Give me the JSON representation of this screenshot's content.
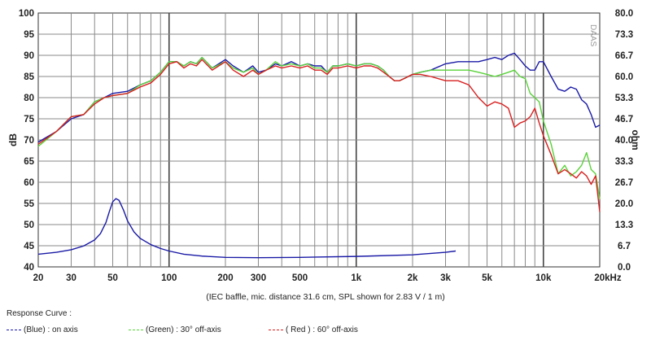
{
  "chart_data": {
    "type": "line",
    "note": "(IEC baffle, mic. distance 31.6 cm, SPL shown for 2.83 V / 1 m)",
    "watermark": "DAAS",
    "xlabel": "",
    "ylabel": "dB",
    "y2label": "ohm",
    "xscale": "log",
    "xlim": [
      20,
      20000
    ],
    "ylim": [
      40,
      100
    ],
    "y2lim": [
      0,
      80
    ],
    "grid": true,
    "x_ticks": [
      20,
      30,
      50,
      100,
      200,
      300,
      500,
      1000,
      2000,
      3000,
      5000,
      10000,
      20000
    ],
    "x_tick_labels": [
      "20",
      "30",
      "50",
      "100",
      "200",
      "300",
      "500",
      "1k",
      "2k",
      "3k",
      "5k",
      "10k",
      "20kHz"
    ],
    "y_ticks": [
      40,
      45,
      50,
      55,
      60,
      65,
      70,
      75,
      80,
      85,
      90,
      95,
      100
    ],
    "y_tick_labels": [
      "40",
      "45",
      "50",
      "55",
      "60",
      "65",
      "70",
      "75",
      "80",
      "85",
      "90",
      "95",
      "100"
    ],
    "y2_ticks": [
      0.0,
      6.7,
      13.3,
      20.0,
      26.7,
      33.3,
      40.0,
      46.7,
      53.3,
      60.0,
      66.7,
      73.3,
      80.0
    ],
    "y2_tick_labels": [
      "0.0",
      "6.7",
      "13.3",
      "20.0",
      "26.7",
      "33.3",
      "40.0",
      "46.7",
      "53.3",
      "60.0",
      "66.7",
      "73.3",
      "80.0"
    ],
    "series": [
      {
        "name": "(Blue)  : on axis",
        "color": "#1a1aa6",
        "points": [
          [
            20,
            69.5
          ],
          [
            25,
            72
          ],
          [
            30,
            75
          ],
          [
            35,
            76
          ],
          [
            40,
            79
          ],
          [
            45,
            80
          ],
          [
            50,
            81
          ],
          [
            60,
            81.5
          ],
          [
            70,
            83
          ],
          [
            80,
            84
          ],
          [
            90,
            86
          ],
          [
            100,
            88.5
          ],
          [
            110,
            88.5
          ],
          [
            120,
            87.5
          ],
          [
            130,
            88.5
          ],
          [
            140,
            88
          ],
          [
            150,
            89.5
          ],
          [
            170,
            87
          ],
          [
            200,
            89
          ],
          [
            220,
            87.5
          ],
          [
            250,
            86
          ],
          [
            280,
            87.5
          ],
          [
            300,
            86
          ],
          [
            330,
            86.5
          ],
          [
            370,
            88
          ],
          [
            400,
            87.5
          ],
          [
            450,
            88.5
          ],
          [
            500,
            87.5
          ],
          [
            550,
            88
          ],
          [
            600,
            87.5
          ],
          [
            650,
            87.5
          ],
          [
            700,
            86
          ],
          [
            750,
            87.5
          ],
          [
            800,
            87.5
          ],
          [
            900,
            88
          ],
          [
            1000,
            87.5
          ],
          [
            1100,
            88
          ],
          [
            1200,
            88
          ],
          [
            1300,
            87.5
          ],
          [
            1400,
            86.5
          ],
          [
            1500,
            85
          ],
          [
            1600,
            84
          ],
          [
            1700,
            84
          ],
          [
            1800,
            84.5
          ],
          [
            2000,
            85.5
          ],
          [
            2200,
            86
          ],
          [
            2500,
            86.5
          ],
          [
            3000,
            88
          ],
          [
            3500,
            88.5
          ],
          [
            4000,
            88.5
          ],
          [
            4500,
            88.5
          ],
          [
            5000,
            89
          ],
          [
            5500,
            89.5
          ],
          [
            6000,
            89
          ],
          [
            6500,
            90
          ],
          [
            7000,
            90.5
          ],
          [
            7500,
            89
          ],
          [
            8000,
            87.5
          ],
          [
            8500,
            86.5
          ],
          [
            9000,
            86.5
          ],
          [
            9500,
            88.5
          ],
          [
            10000,
            88.5
          ],
          [
            11000,
            85
          ],
          [
            12000,
            82
          ],
          [
            13000,
            81.5
          ],
          [
            14000,
            82.5
          ],
          [
            15000,
            82
          ],
          [
            16000,
            79.5
          ],
          [
            17000,
            78.5
          ],
          [
            18000,
            76
          ],
          [
            19000,
            73
          ],
          [
            20000,
            73.5
          ]
        ]
      },
      {
        "name": "(Green) : 30° off-axis",
        "color": "#5ad23a",
        "points": [
          [
            20,
            68.5
          ],
          [
            25,
            72
          ],
          [
            30,
            75.5
          ],
          [
            35,
            76
          ],
          [
            40,
            79
          ],
          [
            45,
            80
          ],
          [
            50,
            80.5
          ],
          [
            60,
            81
          ],
          [
            70,
            83
          ],
          [
            80,
            84
          ],
          [
            90,
            86
          ],
          [
            100,
            88.5
          ],
          [
            110,
            88.5
          ],
          [
            120,
            87.5
          ],
          [
            130,
            88.5
          ],
          [
            140,
            88
          ],
          [
            150,
            89.5
          ],
          [
            170,
            87
          ],
          [
            200,
            88.5
          ],
          [
            220,
            87
          ],
          [
            250,
            86
          ],
          [
            280,
            87
          ],
          [
            300,
            85.5
          ],
          [
            330,
            86.5
          ],
          [
            370,
            88.5
          ],
          [
            400,
            87.5
          ],
          [
            450,
            88
          ],
          [
            500,
            87.5
          ],
          [
            550,
            88
          ],
          [
            600,
            87
          ],
          [
            650,
            87
          ],
          [
            700,
            86
          ],
          [
            750,
            87.5
          ],
          [
            800,
            87.5
          ],
          [
            900,
            88
          ],
          [
            1000,
            87.5
          ],
          [
            1100,
            88
          ],
          [
            1200,
            88
          ],
          [
            1300,
            87.5
          ],
          [
            1400,
            86.5
          ],
          [
            1500,
            85
          ],
          [
            1600,
            84
          ],
          [
            1700,
            84
          ],
          [
            1800,
            84.5
          ],
          [
            2000,
            85.5
          ],
          [
            2200,
            86
          ],
          [
            2500,
            86.5
          ],
          [
            3000,
            86.5
          ],
          [
            3500,
            86.5
          ],
          [
            4000,
            86.5
          ],
          [
            4500,
            86
          ],
          [
            5000,
            85.5
          ],
          [
            5500,
            85
          ],
          [
            6000,
            85.5
          ],
          [
            6500,
            86
          ],
          [
            7000,
            86.5
          ],
          [
            7500,
            85
          ],
          [
            8000,
            84.5
          ],
          [
            8500,
            81
          ],
          [
            9000,
            80
          ],
          [
            9500,
            79
          ],
          [
            10000,
            74.5
          ],
          [
            11000,
            69
          ],
          [
            12000,
            62
          ],
          [
            13000,
            64
          ],
          [
            14000,
            61.5
          ],
          [
            15000,
            62.5
          ],
          [
            16000,
            64
          ],
          [
            17000,
            67
          ],
          [
            18000,
            63
          ],
          [
            19000,
            62
          ],
          [
            20000,
            56
          ]
        ]
      },
      {
        "name": "( Red )  : 60° off-axis",
        "color": "#d81f1f",
        "points": [
          [
            20,
            69
          ],
          [
            25,
            72
          ],
          [
            30,
            75.5
          ],
          [
            35,
            76
          ],
          [
            40,
            78.5
          ],
          [
            45,
            80
          ],
          [
            50,
            80.5
          ],
          [
            60,
            81
          ],
          [
            70,
            82.5
          ],
          [
            80,
            83.5
          ],
          [
            90,
            85.5
          ],
          [
            100,
            88
          ],
          [
            110,
            88.5
          ],
          [
            120,
            87
          ],
          [
            130,
            88
          ],
          [
            140,
            87.5
          ],
          [
            150,
            89
          ],
          [
            170,
            86.5
          ],
          [
            200,
            88.5
          ],
          [
            220,
            86.5
          ],
          [
            250,
            85
          ],
          [
            280,
            86.5
          ],
          [
            300,
            85.5
          ],
          [
            330,
            86.5
          ],
          [
            370,
            87.5
          ],
          [
            400,
            87
          ],
          [
            450,
            87.5
          ],
          [
            500,
            87
          ],
          [
            550,
            87.5
          ],
          [
            600,
            86.5
          ],
          [
            650,
            86.5
          ],
          [
            700,
            85.5
          ],
          [
            750,
            87
          ],
          [
            800,
            87
          ],
          [
            900,
            87.5
          ],
          [
            1000,
            87
          ],
          [
            1100,
            87.5
          ],
          [
            1200,
            87.5
          ],
          [
            1300,
            87
          ],
          [
            1400,
            86
          ],
          [
            1500,
            85
          ],
          [
            1600,
            84
          ],
          [
            1700,
            84
          ],
          [
            1800,
            84.5
          ],
          [
            2000,
            85.5
          ],
          [
            2200,
            85.5
          ],
          [
            2500,
            85
          ],
          [
            3000,
            84
          ],
          [
            3500,
            84
          ],
          [
            4000,
            83
          ],
          [
            4500,
            80
          ],
          [
            5000,
            78
          ],
          [
            5500,
            79
          ],
          [
            6000,
            78.5
          ],
          [
            6500,
            77.5
          ],
          [
            7000,
            73
          ],
          [
            7500,
            74
          ],
          [
            8000,
            74.5
          ],
          [
            8500,
            75.5
          ],
          [
            9000,
            77.5
          ],
          [
            9500,
            74
          ],
          [
            10000,
            71
          ],
          [
            11000,
            66.5
          ],
          [
            12000,
            62
          ],
          [
            13000,
            63
          ],
          [
            14000,
            62
          ],
          [
            15000,
            61
          ],
          [
            16000,
            62.5
          ],
          [
            17000,
            61.5
          ],
          [
            18000,
            59.5
          ],
          [
            19000,
            61.5
          ],
          [
            20000,
            53
          ]
        ]
      },
      {
        "name": "Impedance",
        "color": "#1a1aa6",
        "axis": "right",
        "points": [
          [
            20,
            4
          ],
          [
            25,
            4.6
          ],
          [
            30,
            5.4
          ],
          [
            35,
            6.6
          ],
          [
            40,
            8.5
          ],
          [
            43,
            10.5
          ],
          [
            46,
            14
          ],
          [
            48,
            17.5
          ],
          [
            50,
            20.5
          ],
          [
            52,
            21.5
          ],
          [
            54,
            21
          ],
          [
            57,
            18
          ],
          [
            60,
            14.5
          ],
          [
            65,
            11
          ],
          [
            70,
            9
          ],
          [
            80,
            7
          ],
          [
            90,
            5.8
          ],
          [
            100,
            5
          ],
          [
            120,
            4
          ],
          [
            150,
            3.4
          ],
          [
            200,
            3
          ],
          [
            300,
            2.9
          ],
          [
            500,
            3
          ],
          [
            1000,
            3.3
          ],
          [
            2000,
            3.8
          ],
          [
            3000,
            4.6
          ],
          [
            3400,
            5
          ]
        ]
      }
    ]
  },
  "legend": {
    "title": "Response Curve :",
    "items": [
      {
        "label": "(Blue)  : on axis",
        "color": "#1a1aa6"
      },
      {
        "label": "(Green) : 30° off-axis",
        "color": "#5ad23a"
      },
      {
        "label": "( Red )  : 60° off-axis",
        "color": "#d81f1f"
      }
    ]
  }
}
